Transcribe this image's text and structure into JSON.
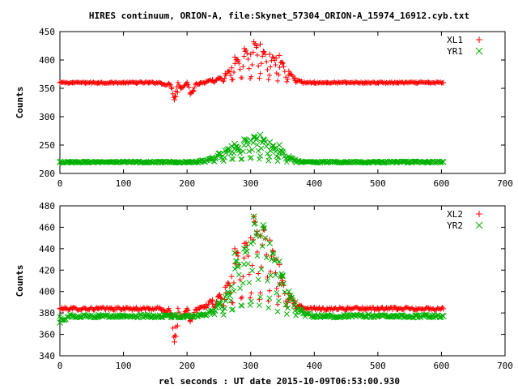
{
  "title": "HIRES continuum, ORION-A, file:Skynet_57304_ORION-A_15974_16912.cyb.txt",
  "xlabel": "rel seconds : UT date 2015-10-09T06:53:00.930",
  "colors": {
    "red": "#ff0000",
    "green": "#00b000",
    "axis": "#000000"
  },
  "chart_data": [
    {
      "type": "scatter",
      "ylabel": "Counts",
      "xlim": [
        0,
        700
      ],
      "ylim": [
        200,
        450
      ],
      "xticks": [
        0,
        100,
        200,
        300,
        400,
        500,
        600,
        700
      ],
      "yticks": [
        200,
        250,
        300,
        350,
        400,
        450
      ],
      "legend_position": "top-right",
      "series": [
        {
          "name": "XL1",
          "marker": "plus",
          "color": "#ff0000",
          "baseline": 360,
          "x": [
            0,
            20,
            40,
            60,
            80,
            100,
            120,
            140,
            160,
            175,
            180,
            182,
            185,
            190,
            200,
            205,
            210,
            220,
            230,
            240,
            250,
            260,
            270,
            275,
            280,
            290,
            300,
            305,
            310,
            315,
            320,
            330,
            340,
            345,
            350,
            360,
            370,
            380,
            400,
            420,
            450,
            480,
            500,
            530,
            560,
            580,
            603
          ],
          "y": [
            360,
            360,
            360,
            360,
            360,
            360,
            360,
            360,
            358,
            352,
            330,
            335,
            343,
            350,
            357,
            340,
            345,
            358,
            362,
            365,
            368,
            376,
            386,
            405,
            400,
            420,
            410,
            432,
            425,
            428,
            415,
            410,
            403,
            408,
            395,
            380,
            368,
            362,
            361,
            360,
            360,
            360,
            360,
            360,
            360,
            360,
            360
          ]
        },
        {
          "name": "YR1",
          "marker": "cross",
          "color": "#00b000",
          "baseline": 220,
          "x": [
            0,
            20,
            40,
            60,
            80,
            100,
            120,
            140,
            160,
            180,
            200,
            220,
            240,
            250,
            260,
            270,
            275,
            280,
            290,
            300,
            305,
            310,
            315,
            320,
            330,
            340,
            345,
            350,
            360,
            370,
            380,
            400,
            420,
            450,
            480,
            500,
            530,
            560,
            580,
            603
          ],
          "y": [
            220,
            220,
            220,
            220,
            220,
            220,
            220,
            220,
            220,
            220,
            220,
            222,
            228,
            235,
            240,
            248,
            252,
            245,
            260,
            258,
            265,
            262,
            268,
            260,
            255,
            245,
            250,
            238,
            230,
            224,
            221,
            220,
            220,
            220,
            220,
            220,
            220,
            220,
            220,
            220
          ]
        }
      ]
    },
    {
      "type": "scatter",
      "ylabel": "Counts",
      "xlim": [
        0,
        700
      ],
      "ylim": [
        340,
        480
      ],
      "xticks": [
        0,
        100,
        200,
        300,
        400,
        500,
        600,
        700
      ],
      "yticks": [
        340,
        360,
        380,
        400,
        420,
        440,
        460,
        480
      ],
      "legend_position": "top-right",
      "series": [
        {
          "name": "XL2",
          "marker": "plus",
          "color": "#ff0000",
          "baseline": 384,
          "x": [
            0,
            20,
            40,
            60,
            80,
            100,
            120,
            140,
            160,
            175,
            180,
            182,
            185,
            190,
            200,
            205,
            210,
            220,
            230,
            240,
            250,
            260,
            270,
            275,
            280,
            290,
            300,
            305,
            310,
            315,
            320,
            330,
            340,
            345,
            350,
            360,
            370,
            380,
            400,
            420,
            450,
            480,
            500,
            530,
            560,
            580,
            603
          ],
          "y": [
            384,
            384,
            384,
            384,
            384,
            384,
            384,
            384,
            383,
            378,
            353,
            358,
            368,
            376,
            382,
            372,
            377,
            385,
            388,
            392,
            396,
            404,
            414,
            440,
            436,
            445,
            450,
            470,
            456,
            452,
            460,
            448,
            430,
            425,
            410,
            398,
            390,
            386,
            385,
            384,
            384,
            384,
            384,
            384,
            384,
            384,
            384
          ]
        },
        {
          "name": "YR2",
          "marker": "cross",
          "color": "#00b000",
          "baseline": 377,
          "x": [
            0,
            20,
            40,
            60,
            80,
            100,
            120,
            140,
            160,
            180,
            200,
            220,
            240,
            250,
            260,
            270,
            275,
            280,
            290,
            300,
            305,
            310,
            315,
            320,
            330,
            340,
            345,
            350,
            360,
            370,
            380,
            400,
            420,
            450,
            480,
            500,
            530,
            560,
            580,
            603
          ],
          "y": [
            371,
            377,
            377,
            377,
            377,
            377,
            377,
            377,
            377,
            377,
            377,
            378,
            382,
            390,
            395,
            405,
            436,
            425,
            440,
            445,
            470,
            455,
            452,
            462,
            445,
            430,
            428,
            415,
            400,
            390,
            382,
            378,
            377,
            377,
            377,
            377,
            377,
            377,
            377,
            377
          ]
        }
      ]
    }
  ]
}
